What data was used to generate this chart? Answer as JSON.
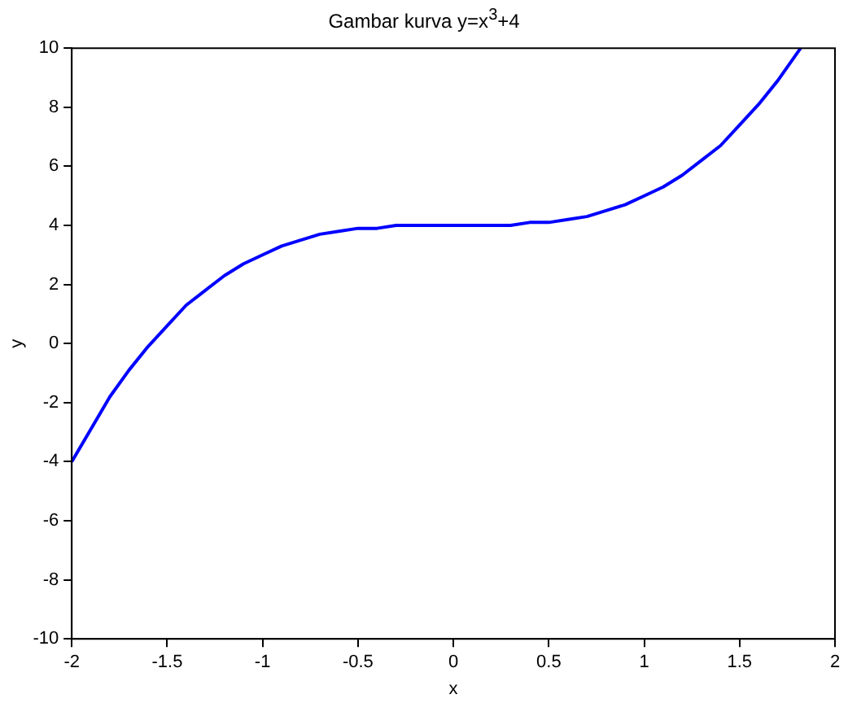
{
  "chart_data": {
    "type": "line",
    "title": "Gambar kurva y=x$^{3}$+4",
    "xlabel": "x",
    "ylabel": "y",
    "x": [
      -2,
      -1.9,
      -1.8,
      -1.7,
      -1.6,
      -1.5,
      -1.4,
      -1.3,
      -1.2,
      -1.1,
      -1,
      -0.9,
      -0.8,
      -0.7,
      -0.6,
      -0.5,
      -0.4,
      -0.3,
      -0.2,
      -0.1,
      0,
      0.1,
      0.2,
      0.3,
      0.4,
      0.5,
      0.6,
      0.7,
      0.8,
      0.9,
      1,
      1.1,
      1.2,
      1.3,
      1.4,
      1.5,
      1.6,
      1.7,
      1.82
    ],
    "series": [
      {
        "color": "#0000ff",
        "values": [
          -4,
          -2.9,
          -1.8,
          -0.9,
          -0.1,
          0.6,
          1.3,
          1.8,
          2.3,
          2.7,
          3,
          3.3,
          3.5,
          3.7,
          3.8,
          3.9,
          3.9,
          4,
          4,
          4,
          4,
          4,
          4,
          4,
          4.1,
          4.1,
          4.2,
          4.3,
          4.5,
          4.7,
          5,
          5.3,
          5.7,
          6.2,
          6.7,
          7.4,
          8.1,
          8.9,
          10
        ]
      }
    ],
    "xlim": [
      -2,
      2
    ],
    "xticks": [
      -2,
      -1.5,
      -1,
      -0.5,
      0,
      0.5,
      1,
      1.5,
      2
    ],
    "ylim": [
      -10,
      10
    ],
    "yticks": [
      -10,
      -8,
      -6,
      -4,
      -2,
      0,
      2,
      4,
      6,
      8,
      10
    ],
    "grid": false,
    "legend": false,
    "marker": "none",
    "line_style": "solid"
  }
}
